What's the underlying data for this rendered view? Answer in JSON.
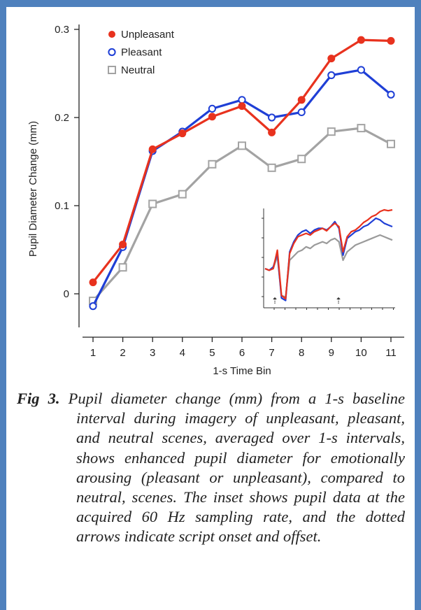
{
  "chart_data": {
    "type": "line",
    "xlabel": "1-s Time Bin",
    "ylabel": "Pupil Diameter Change (mm)",
    "x": [
      1,
      2,
      3,
      4,
      5,
      6,
      7,
      8,
      9,
      10,
      11
    ],
    "x_ticks": [
      "1",
      "2",
      "3",
      "4",
      "5",
      "6",
      "7",
      "8",
      "9",
      "10",
      "11"
    ],
    "y_ticks": [
      "0",
      "0.1",
      "0.2",
      "0.3"
    ],
    "ylim": [
      -0.04,
      0.3
    ],
    "xlim": [
      0.5,
      11.5
    ],
    "grid": false,
    "legend_position": "top-left",
    "series": [
      {
        "name": "Unpleasant",
        "marker": "filled-circle",
        "color": "#e8321e",
        "values": [
          0.013,
          0.056,
          0.164,
          0.182,
          0.201,
          0.213,
          0.183,
          0.22,
          0.267,
          0.288,
          0.287
        ]
      },
      {
        "name": "Pleasant",
        "marker": "open-circle",
        "color": "#1f3fd6",
        "values": [
          -0.014,
          0.053,
          0.162,
          0.184,
          0.21,
          0.22,
          0.2,
          0.206,
          0.248,
          0.254,
          0.226
        ]
      },
      {
        "name": "Neutral",
        "marker": "open-square",
        "color": "#a3a3a3",
        "values": [
          -0.008,
          0.03,
          0.102,
          0.113,
          0.147,
          0.168,
          0.143,
          0.153,
          0.184,
          0.188,
          0.17
        ]
      }
    ],
    "inset": {
      "description_type": "line",
      "arrows": [
        "script onset",
        "script offset"
      ],
      "arrow_glyph": "⇡",
      "series": [
        {
          "color": "#e8321e",
          "values": [
            0.4,
            0.38,
            0.4,
            0.62,
            0.08,
            0.04,
            0.58,
            0.7,
            0.78,
            0.8,
            0.82,
            0.8,
            0.84,
            0.86,
            0.88,
            0.85,
            0.9,
            0.94,
            0.9,
            0.6,
            0.78,
            0.84,
            0.86,
            0.9,
            0.95,
            0.98,
            1.02,
            1.04,
            1.08,
            1.1,
            1.09,
            1.1
          ]
        },
        {
          "color": "#1f3fd6",
          "values": [
            0.4,
            0.38,
            0.42,
            0.58,
            0.05,
            0.02,
            0.6,
            0.72,
            0.8,
            0.84,
            0.86,
            0.82,
            0.86,
            0.88,
            0.88,
            0.86,
            0.9,
            0.96,
            0.88,
            0.56,
            0.76,
            0.8,
            0.84,
            0.86,
            0.9,
            0.92,
            0.96,
            1.0,
            0.98,
            0.94,
            0.92,
            0.9
          ]
        },
        {
          "color": "#9a9a9a",
          "values": [
            0.4,
            0.38,
            0.4,
            0.55,
            0.08,
            0.06,
            0.5,
            0.55,
            0.6,
            0.62,
            0.66,
            0.64,
            0.68,
            0.7,
            0.72,
            0.7,
            0.74,
            0.76,
            0.72,
            0.5,
            0.6,
            0.64,
            0.68,
            0.7,
            0.72,
            0.74,
            0.76,
            0.78,
            0.8,
            0.78,
            0.76,
            0.74
          ]
        }
      ]
    }
  },
  "caption": {
    "label": "Fig 3.",
    "text": "Pupil diameter change (mm) from a 1-s baseline interval during imagery of unpleasant, pleasant, and neutral scenes, averaged over 1-s intervals, shows enhanced pupil diameter for emotionally arousing (pleasant or unpleasant), compared to neutral, scenes. The inset shows pupil data at the acquired 60 Hz sampling rate, and the dotted arrows indicate script onset and offset."
  }
}
